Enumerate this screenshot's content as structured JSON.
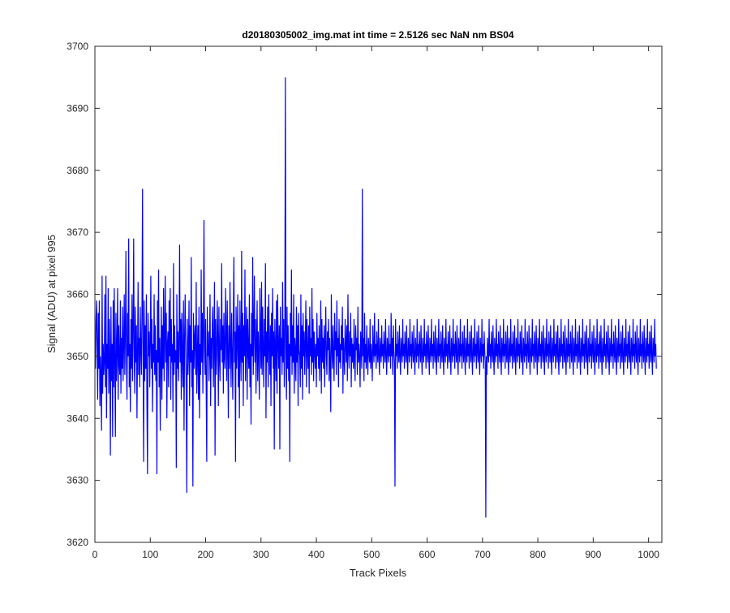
{
  "chart_data": {
    "type": "line",
    "title": "d20180305002_img.mat int time = 2.5126 sec  NaN nm BS04",
    "xlabel": "Track Pixels",
    "ylabel": "Signal (ADU) at pixel 995",
    "xlim": [
      0,
      1024
    ],
    "ylim": [
      3620,
      3700
    ],
    "xticks": [
      0,
      100,
      200,
      300,
      400,
      500,
      600,
      700,
      800,
      900,
      1000
    ],
    "yticks": [
      3620,
      3630,
      3640,
      3650,
      3660,
      3670,
      3680,
      3690,
      3700
    ],
    "grid": false,
    "legend": "none",
    "color": "#0000ff",
    "series": [
      {
        "x_start": 1,
        "x_step": 1,
        "values": [
          3648,
          3656,
          3659,
          3652,
          3643,
          3657,
          3648,
          3659,
          3642,
          3650,
          3646,
          3638,
          3663,
          3644,
          3652,
          3647,
          3649,
          3660,
          3645,
          3663,
          3640,
          3652,
          3648,
          3661,
          3644,
          3656,
          3650,
          3634,
          3658,
          3646,
          3652,
          3637,
          3659,
          3645,
          3661,
          3649,
          3637,
          3657,
          3646,
          3651,
          3661,
          3643,
          3655,
          3649,
          3647,
          3659,
          3644,
          3653,
          3648,
          3658,
          3646,
          3652,
          3660,
          3647,
          3654,
          3667,
          3649,
          3643,
          3657,
          3650,
          3669,
          3645,
          3652,
          3641,
          3656,
          3648,
          3660,
          3646,
          3654,
          3669,
          3650,
          3644,
          3658,
          3649,
          3655,
          3640,
          3651,
          3662,
          3647,
          3653,
          3645,
          3658,
          3651,
          3647,
          3657,
          3677,
          3650,
          3633,
          3659,
          3646,
          3655,
          3648,
          3660,
          3642,
          3631,
          3657,
          3650,
          3654,
          3645,
          3652,
          3663,
          3648,
          3656,
          3641,
          3652,
          3649,
          3660,
          3647,
          3655,
          3646,
          3651,
          3631,
          3659,
          3649,
          3664,
          3645,
          3653,
          3638,
          3650,
          3658,
          3643,
          3655,
          3648,
          3661,
          3646,
          3653,
          3663,
          3649,
          3657,
          3640,
          3652,
          3654,
          3645,
          3659,
          3650,
          3661,
          3643,
          3656,
          3649,
          3652,
          3641,
          3665,
          3647,
          3655,
          3649,
          3651,
          3632,
          3660,
          3648,
          3654,
          3646,
          3652,
          3668,
          3649,
          3656,
          3643,
          3657,
          3650,
          3645,
          3659,
          3638,
          3653,
          3660,
          3652,
          3644,
          3628,
          3656,
          3647,
          3651,
          3659,
          3642,
          3655,
          3649,
          3666,
          3645,
          3651,
          3629,
          3657,
          3648,
          3653,
          3655,
          3647,
          3662,
          3644,
          3650,
          3655,
          3643,
          3658,
          3640,
          3652,
          3647,
          3664,
          3649,
          3657,
          3644,
          3654,
          3672,
          3651,
          3647,
          3656,
          3645,
          3633,
          3658,
          3650,
          3654,
          3646,
          3651,
          3660,
          3642,
          3653,
          3648,
          3655,
          3658,
          3645,
          3652,
          3662,
          3634,
          3656,
          3647,
          3650,
          3659,
          3653,
          3642,
          3658,
          3650,
          3646,
          3656,
          3651,
          3665,
          3649,
          3655,
          3644,
          3657,
          3650,
          3648,
          3661,
          3654,
          3646,
          3659,
          3651,
          3640,
          3655,
          3648,
          3662,
          3652,
          3645,
          3657,
          3650,
          3643,
          3656,
          3666,
          3649,
          3654,
          3633,
          3658,
          3648,
          3652,
          3660,
          3645,
          3655,
          3640,
          3659,
          3651,
          3646,
          3667,
          3649,
          3657,
          3642,
          3655,
          3650,
          3664,
          3646,
          3653,
          3658,
          3643,
          3656,
          3651,
          3648,
          3660,
          3645,
          3652,
          3639,
          3657,
          3650,
          3666,
          3647,
          3654,
          3663,
          3649,
          3656,
          3644,
          3652,
          3659,
          3646,
          3654,
          3650,
          3643,
          3661,
          3653,
          3648,
          3662,
          3647,
          3658,
          3651,
          3645,
          3656,
          3650,
          3665,
          3640,
          3654,
          3649,
          3658,
          3645,
          3660,
          3652,
          3647,
          3655,
          3642,
          3657,
          3650,
          3661,
          3648,
          3654,
          3635,
          3656,
          3651,
          3646,
          3659,
          3644,
          3660,
          3652,
          3648,
          3655,
          3635,
          3658,
          3650,
          3653,
          3647,
          3662,
          3649,
          3656,
          3645,
          3654,
          3695,
          3650,
          3643,
          3658,
          3648,
          3655,
          3646,
          3652,
          3633,
          3657,
          3650,
          3664,
          3647,
          3655,
          3649,
          3660,
          3644,
          3653,
          3651,
          3646,
          3658,
          3649,
          3655,
          3642,
          3657,
          3651,
          3650,
          3645,
          3660,
          3648,
          3655,
          3643,
          3657,
          3650,
          3654,
          3647,
          3652,
          3659,
          3645,
          3656,
          3651,
          3648,
          3655,
          3644,
          3658,
          3650,
          3653,
          3647,
          3661,
          3649,
          3656,
          3646,
          3654,
          3651,
          3648,
          3652,
          3645,
          3657,
          3650,
          3653,
          3648,
          3655,
          3646,
          3651,
          3659,
          3644,
          3656,
          3649,
          3653,
          3648,
          3655,
          3645,
          3652,
          3658,
          3650,
          3647,
          3654,
          3651,
          3656,
          3646,
          3653,
          3649,
          3641,
          3660,
          3652,
          3648,
          3655,
          3650,
          3646,
          3657,
          3651,
          3654,
          3647,
          3659,
          3650,
          3653,
          3645,
          3656,
          3649,
          3652,
          3648,
          3655,
          3651,
          3658,
          3644,
          3653,
          3650,
          3647,
          3656,
          3652,
          3649,
          3655,
          3646,
          3660,
          3651,
          3648,
          3654,
          3650,
          3657,
          3645,
          3653,
          3649,
          3652,
          3648,
          3656,
          3650,
          3646,
          3655,
          3651,
          3653,
          3647,
          3658,
          3649,
          3652,
          3650,
          3645,
          3654,
          3651,
          3648,
          3677,
          3650,
          3653,
          3646,
          3657,
          3649,
          3652,
          3648,
          3655,
          3650,
          3647,
          3653,
          3651,
          3649,
          3656,
          3648,
          3652,
          3650,
          3646,
          3655,
          3651,
          3649,
          3657,
          3650,
          3652,
          3648,
          3654,
          3651,
          3649,
          3656,
          3650,
          3647,
          3653,
          3651,
          3649,
          3655,
          3650,
          3652,
          3648,
          3654,
          3651,
          3649,
          3656,
          3650,
          3647,
          3653,
          3651,
          3649,
          3655,
          3650,
          3652,
          3648,
          3657,
          3650,
          3653,
          3647,
          3655,
          3651,
          3649,
          3629,
          3656,
          3650,
          3652,
          3648,
          3654,
          3651,
          3649,
          3655,
          3650,
          3647,
          3653,
          3651,
          3649,
          3656,
          3650,
          3652,
          3648,
          3654,
          3651,
          3649,
          3655,
          3650,
          3647,
          3653,
          3651,
          3649,
          3656,
          3650,
          3652,
          3648,
          3654,
          3651,
          3649,
          3655,
          3650,
          3647,
          3653,
          3651,
          3649,
          3656,
          3650,
          3652,
          3648,
          3654,
          3651,
          3649,
          3655,
          3650,
          3647,
          3653,
          3651,
          3649,
          3656,
          3650,
          3652,
          3648,
          3654,
          3651,
          3649,
          3655,
          3650,
          3647,
          3653,
          3651,
          3649,
          3656,
          3650,
          3652,
          3648,
          3654,
          3651,
          3649,
          3655,
          3650,
          3647,
          3653,
          3651,
          3649,
          3656,
          3650,
          3652,
          3648,
          3654,
          3651,
          3649,
          3655,
          3650,
          3647,
          3653,
          3651,
          3649,
          3656,
          3650,
          3652,
          3648,
          3654,
          3651,
          3649,
          3655,
          3650,
          3647,
          3653,
          3651,
          3649,
          3656,
          3650,
          3652,
          3648,
          3654,
          3651,
          3649,
          3655,
          3650,
          3647,
          3653,
          3651,
          3649,
          3656,
          3650,
          3652,
          3648,
          3654,
          3651,
          3649,
          3655,
          3650,
          3647,
          3653,
          3651,
          3649,
          3656,
          3650,
          3652,
          3648,
          3654,
          3651,
          3649,
          3655,
          3650,
          3647,
          3653,
          3651,
          3649,
          3656,
          3650,
          3652,
          3648,
          3654,
          3651,
          3649,
          3655,
          3650,
          3647,
          3653,
          3651,
          3649,
          3656,
          3650,
          3652,
          3648,
          3654,
          3651,
          3649,
          3624,
          3650,
          3647,
          3653,
          3651,
          3649,
          3656,
          3650,
          3652,
          3648,
          3654,
          3651,
          3649,
          3655,
          3650,
          3647,
          3653,
          3651,
          3649,
          3656,
          3650,
          3652,
          3648,
          3654,
          3651,
          3649,
          3655,
          3650,
          3647,
          3653,
          3651,
          3649,
          3656,
          3650,
          3652,
          3648,
          3654,
          3651,
          3649,
          3655,
          3650,
          3647,
          3653,
          3651,
          3649,
          3656,
          3650,
          3652,
          3648,
          3654,
          3651,
          3649,
          3655,
          3650,
          3647,
          3653,
          3651,
          3649,
          3656,
          3650,
          3652,
          3648,
          3654,
          3651,
          3649,
          3655,
          3650,
          3647,
          3653,
          3651,
          3649,
          3656,
          3650,
          3652,
          3648,
          3654,
          3651,
          3649,
          3655,
          3650,
          3647,
          3653,
          3651,
          3649,
          3656,
          3650,
          3652,
          3648,
          3654,
          3651,
          3649,
          3655,
          3650,
          3647,
          3653,
          3651,
          3649,
          3656,
          3650,
          3652,
          3648,
          3654,
          3651,
          3649,
          3655,
          3650,
          3647,
          3653,
          3651,
          3649,
          3656,
          3650,
          3652,
          3648,
          3654,
          3651,
          3649,
          3655,
          3650,
          3647,
          3653,
          3651,
          3649,
          3656,
          3650,
          3652,
          3648,
          3654,
          3651,
          3649,
          3655,
          3650,
          3647,
          3653,
          3651,
          3649,
          3656,
          3650,
          3652,
          3648,
          3654,
          3651,
          3649,
          3655,
          3650,
          3647,
          3653,
          3651,
          3649,
          3656,
          3650,
          3652,
          3648,
          3654,
          3651,
          3649,
          3655,
          3650,
          3647,
          3653,
          3651,
          3649,
          3656,
          3650,
          3652,
          3648,
          3654,
          3651,
          3649,
          3655,
          3650,
          3647,
          3653,
          3651,
          3649,
          3656,
          3650,
          3652,
          3648,
          3654,
          3651,
          3649,
          3655,
          3650,
          3647,
          3653,
          3651,
          3649,
          3656,
          3650,
          3652,
          3648,
          3654,
          3651,
          3649,
          3655,
          3650,
          3647,
          3653,
          3651,
          3649,
          3656,
          3650,
          3652,
          3648,
          3654,
          3651,
          3649,
          3655,
          3650,
          3647,
          3653,
          3651,
          3649,
          3656,
          3650,
          3652,
          3648,
          3654,
          3651,
          3649,
          3655,
          3650,
          3647,
          3653,
          3651,
          3649,
          3656,
          3650,
          3652,
          3648,
          3654,
          3651,
          3649,
          3655,
          3650,
          3647,
          3653,
          3651,
          3649,
          3656,
          3650,
          3652,
          3648,
          3654,
          3651,
          3649,
          3655,
          3650,
          3647,
          3653,
          3651,
          3649,
          3656,
          3650,
          3652,
          3648,
          3654,
          3651,
          3649,
          3655,
          3650,
          3647,
          3653,
          3651,
          3649,
          3656,
          3650,
          3652,
          3648,
          3654,
          3651,
          3649,
          3655,
          3650,
          3647,
          3653,
          3651,
          3649,
          3656,
          3650,
          3652,
          3648,
          3654,
          3651,
          3649,
          3655,
          3650,
          3647,
          3653,
          3651,
          3649,
          3656,
          3650,
          3652,
          3648,
          3654,
          3651,
          3649,
          3655,
          3650,
          3647,
          3653,
          3651,
          3649,
          3656,
          3650,
          3652,
          3648
        ]
      }
    ]
  }
}
